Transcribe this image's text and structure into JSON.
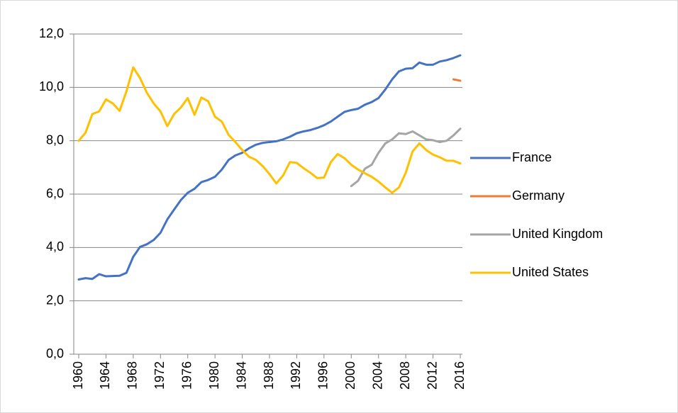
{
  "chart_data": {
    "type": "line",
    "x": [
      1960,
      1961,
      1962,
      1963,
      1964,
      1965,
      1966,
      1967,
      1968,
      1969,
      1970,
      1971,
      1972,
      1973,
      1974,
      1975,
      1976,
      1977,
      1978,
      1979,
      1980,
      1981,
      1982,
      1983,
      1984,
      1985,
      1986,
      1987,
      1988,
      1989,
      1990,
      1991,
      1992,
      1993,
      1994,
      1995,
      1996,
      1997,
      1998,
      1999,
      2000,
      2001,
      2002,
      2003,
      2004,
      2005,
      2006,
      2007,
      2008,
      2009,
      2010,
      2011,
      2012,
      2013,
      2014,
      2015,
      2016
    ],
    "series": [
      {
        "name": "France",
        "color": "#4472c4",
        "values": [
          2.8,
          2.85,
          2.82,
          3.0,
          2.92,
          2.93,
          2.94,
          3.05,
          3.65,
          4.02,
          4.12,
          4.28,
          4.55,
          5.05,
          5.42,
          5.78,
          6.05,
          6.2,
          6.45,
          6.53,
          6.65,
          6.92,
          7.28,
          7.45,
          7.55,
          7.72,
          7.85,
          7.92,
          7.95,
          7.98,
          8.05,
          8.15,
          8.28,
          8.35,
          8.4,
          8.48,
          8.58,
          8.72,
          8.9,
          9.08,
          9.15,
          9.2,
          9.35,
          9.45,
          9.6,
          9.92,
          10.3,
          10.6,
          10.7,
          10.72,
          10.93,
          10.85,
          10.85,
          10.97,
          11.02,
          11.1,
          11.2
        ]
      },
      {
        "name": "Germany",
        "color": "#ed7d31",
        "values": [
          null,
          null,
          null,
          null,
          null,
          null,
          null,
          null,
          null,
          null,
          null,
          null,
          null,
          null,
          null,
          null,
          null,
          null,
          null,
          null,
          null,
          null,
          null,
          null,
          null,
          null,
          null,
          null,
          null,
          null,
          null,
          null,
          null,
          null,
          null,
          null,
          null,
          null,
          null,
          null,
          null,
          null,
          null,
          null,
          null,
          null,
          null,
          null,
          null,
          null,
          null,
          null,
          null,
          null,
          null,
          10.3,
          10.25
        ]
      },
      {
        "name": "United Kingdom",
        "color": "#a5a5a5",
        "values": [
          null,
          null,
          null,
          null,
          null,
          null,
          null,
          null,
          null,
          null,
          null,
          null,
          null,
          null,
          null,
          null,
          null,
          null,
          null,
          null,
          null,
          null,
          null,
          null,
          null,
          null,
          null,
          null,
          null,
          null,
          null,
          null,
          null,
          null,
          null,
          null,
          null,
          null,
          null,
          null,
          6.3,
          6.5,
          6.95,
          7.1,
          7.55,
          7.9,
          8.05,
          8.28,
          8.25,
          8.35,
          8.2,
          8.05,
          8.02,
          7.95,
          8.0,
          8.2,
          8.45
        ]
      },
      {
        "name": "United States",
        "color": "#ffc000",
        "values": [
          8.0,
          8.3,
          9.0,
          9.1,
          9.55,
          9.4,
          9.12,
          9.85,
          10.75,
          10.35,
          9.8,
          9.4,
          9.1,
          8.55,
          9.0,
          9.25,
          9.6,
          8.97,
          9.62,
          9.48,
          8.9,
          8.72,
          8.22,
          7.95,
          7.65,
          7.4,
          7.28,
          7.05,
          6.75,
          6.4,
          6.7,
          7.2,
          7.17,
          6.97,
          6.8,
          6.6,
          6.62,
          7.2,
          7.5,
          7.35,
          7.1,
          6.92,
          6.78,
          6.65,
          6.47,
          6.25,
          6.05,
          6.25,
          6.8,
          7.6,
          7.9,
          7.65,
          7.48,
          7.38,
          7.25,
          7.25,
          7.15
        ]
      }
    ],
    "xlim": [
      1960,
      2016
    ],
    "xticks": [
      1960,
      1964,
      1968,
      1972,
      1976,
      1980,
      1984,
      1988,
      1992,
      1996,
      2000,
      2004,
      2008,
      2012,
      2016
    ],
    "ylim": [
      0,
      12
    ],
    "yticks": [
      {
        "value": 0,
        "label": "0,0"
      },
      {
        "value": 2,
        "label": "2,0"
      },
      {
        "value": 4,
        "label": "4,0"
      },
      {
        "value": 6,
        "label": "6,0"
      },
      {
        "value": 8,
        "label": "8,0"
      },
      {
        "value": 10,
        "label": "10,0"
      },
      {
        "value": 12,
        "label": "12,0"
      }
    ],
    "grid": true,
    "legend": "right"
  }
}
